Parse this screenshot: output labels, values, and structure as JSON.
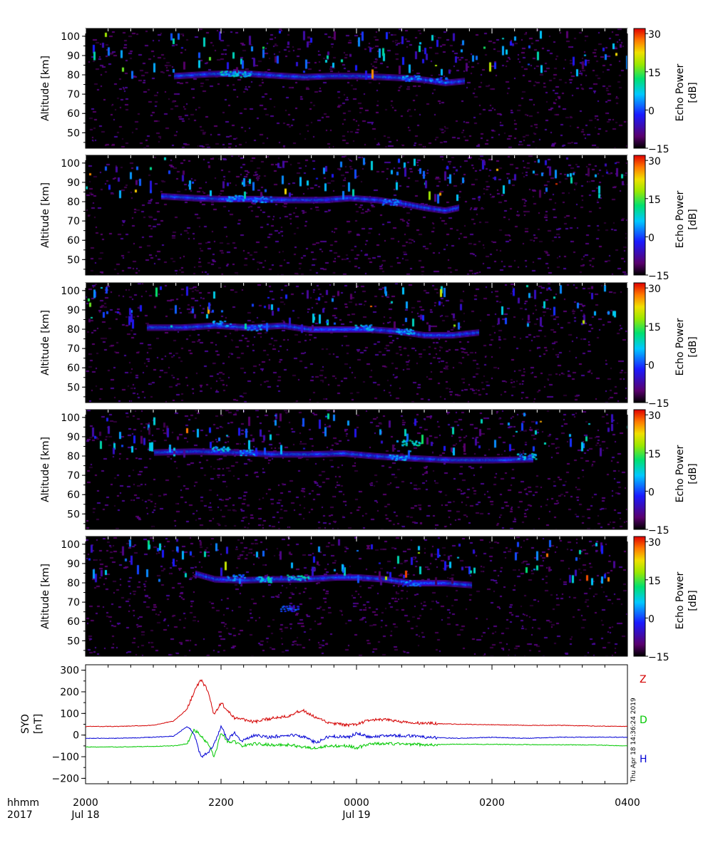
{
  "chart_data": [
    {
      "type": "heatmap",
      "panel": 1,
      "ylabel": "Altitude [km]",
      "yticks": [
        50,
        60,
        70,
        80,
        90,
        100
      ],
      "ylim": [
        42,
        104
      ],
      "xlim_hours": [
        20,
        28
      ],
      "colorbar": {
        "label_line1": "Echo Power",
        "label_line2": "[dB]",
        "ticks": [
          "30",
          "15",
          "0",
          "−15"
        ],
        "range": [
          -15,
          32
        ]
      },
      "layer": [
        [
          21.3,
          79.5
        ],
        [
          21.8,
          80.5
        ],
        [
          22.3,
          81
        ],
        [
          22.7,
          80
        ],
        [
          23.2,
          79
        ],
        [
          23.6,
          79.5
        ],
        [
          24.0,
          79.5
        ],
        [
          24.4,
          79
        ],
        [
          24.7,
          78.5
        ],
        [
          25.0,
          77.5
        ],
        [
          25.3,
          76
        ],
        [
          25.6,
          77
        ]
      ],
      "bright_spots": [
        [
          22.1,
          81,
          12
        ],
        [
          22.3,
          80.5,
          10
        ],
        [
          24.8,
          78.5,
          8
        ],
        [
          25.2,
          77.5,
          6
        ]
      ]
    },
    {
      "type": "heatmap",
      "panel": 2,
      "ylabel": "Altitude [km]",
      "yticks": [
        50,
        60,
        70,
        80,
        90,
        100
      ],
      "ylim": [
        42,
        104
      ],
      "xlim_hours": [
        20,
        28
      ],
      "colorbar": {
        "label_line1": "Echo Power",
        "label_line2": "[dB]",
        "ticks": [
          "30",
          "15",
          "0",
          "−15"
        ],
        "range": [
          -15,
          32
        ]
      },
      "layer": [
        [
          21.1,
          83
        ],
        [
          21.6,
          82
        ],
        [
          22.0,
          81.5
        ],
        [
          22.5,
          81.5
        ],
        [
          23.0,
          81
        ],
        [
          23.5,
          81
        ],
        [
          23.9,
          82
        ],
        [
          24.3,
          81
        ],
        [
          24.7,
          79
        ],
        [
          25.0,
          77
        ],
        [
          25.3,
          75.5
        ],
        [
          25.5,
          77
        ]
      ],
      "bright_spots": [
        [
          22.2,
          82,
          8
        ],
        [
          22.6,
          81.5,
          6
        ],
        [
          24.5,
          80,
          6
        ]
      ]
    },
    {
      "type": "heatmap",
      "panel": 3,
      "ylabel": "Altitude [km]",
      "yticks": [
        50,
        60,
        70,
        80,
        90,
        100
      ],
      "ylim": [
        42,
        104
      ],
      "xlim_hours": [
        20,
        28
      ],
      "colorbar": {
        "label_line1": "Echo Power",
        "label_line2": "[dB]",
        "ticks": [
          "30",
          "15",
          "0",
          "−15"
        ],
        "range": [
          -15,
          32
        ]
      },
      "layer": [
        [
          20.9,
          81
        ],
        [
          21.4,
          81
        ],
        [
          21.9,
          82
        ],
        [
          22.4,
          81
        ],
        [
          22.9,
          82
        ],
        [
          23.3,
          80
        ],
        [
          23.8,
          80
        ],
        [
          24.2,
          80
        ],
        [
          24.6,
          79
        ],
        [
          25.0,
          77
        ],
        [
          25.4,
          77
        ],
        [
          25.8,
          78.5
        ]
      ],
      "bright_spots": [
        [
          22.0,
          83,
          8
        ],
        [
          22.5,
          81,
          6
        ],
        [
          24.1,
          81,
          10
        ],
        [
          24.7,
          79,
          8
        ]
      ]
    },
    {
      "type": "heatmap",
      "panel": 4,
      "ylabel": "Altitude [km]",
      "yticks": [
        50,
        60,
        70,
        80,
        90,
        100
      ],
      "ylim": [
        42,
        104
      ],
      "xlim_hours": [
        20,
        28
      ],
      "colorbar": {
        "label_line1": "Echo Power",
        "label_line2": "[dB]",
        "ticks": [
          "30",
          "15",
          "0",
          "−15"
        ],
        "range": [
          -15,
          32
        ]
      },
      "layer": [
        [
          21.0,
          82
        ],
        [
          21.6,
          82.5
        ],
        [
          22.2,
          82
        ],
        [
          22.8,
          81
        ],
        [
          23.3,
          81
        ],
        [
          23.8,
          81.5
        ],
        [
          24.3,
          80
        ],
        [
          24.8,
          79
        ],
        [
          25.4,
          78
        ],
        [
          26.0,
          78
        ],
        [
          26.6,
          78.5
        ]
      ],
      "bright_spots": [
        [
          22.0,
          84,
          10
        ],
        [
          22.4,
          82,
          8
        ],
        [
          24.6,
          79.5,
          8
        ],
        [
          26.5,
          80,
          10
        ],
        [
          24.8,
          87,
          12
        ]
      ]
    },
    {
      "type": "heatmap",
      "panel": 5,
      "ylabel": "Altitude [km]",
      "yticks": [
        50,
        60,
        70,
        80,
        90,
        100
      ],
      "ylim": [
        42,
        104
      ],
      "xlim_hours": [
        20,
        28
      ],
      "colorbar": {
        "label_line1": "Echo Power",
        "label_line2": "[dB]",
        "ticks": [
          "30",
          "15",
          "0",
          "−15"
        ],
        "range": [
          -15,
          32
        ]
      },
      "layer": [
        [
          21.6,
          85
        ],
        [
          21.9,
          82
        ],
        [
          22.3,
          81.5
        ],
        [
          22.8,
          82
        ],
        [
          23.2,
          82
        ],
        [
          23.7,
          83
        ],
        [
          24.0,
          83
        ],
        [
          24.4,
          82
        ],
        [
          24.8,
          80
        ],
        [
          25.3,
          80
        ],
        [
          25.7,
          79
        ]
      ],
      "bright_spots": [
        [
          22.2,
          83,
          8
        ],
        [
          22.6,
          82,
          10
        ],
        [
          23.1,
          83,
          12
        ],
        [
          24.8,
          80,
          6
        ],
        [
          23.0,
          67,
          4
        ]
      ]
    },
    {
      "type": "line",
      "panel": 6,
      "ylabel_line1": "SYO",
      "ylabel_line2": "[nT]",
      "yticks": [
        "300",
        "200",
        "100",
        "0",
        "−100",
        "−200"
      ],
      "ylim": [
        -225,
        325
      ],
      "xlim_hours": [
        20,
        28
      ],
      "x_hours": [
        20.0,
        20.5,
        21.0,
        21.3,
        21.5,
        21.6,
        21.7,
        21.8,
        21.9,
        22.0,
        22.1,
        22.2,
        22.3,
        22.5,
        22.7,
        23.0,
        23.2,
        23.4,
        23.6,
        23.9,
        24.0,
        24.2,
        24.5,
        24.8,
        25.0,
        25.5,
        26.0,
        26.5,
        27.0,
        27.5,
        28.0
      ],
      "series": [
        {
          "name": "Z",
          "color": "#d40000",
          "values": [
            40,
            40,
            45,
            65,
            120,
            200,
            255,
            210,
            90,
            150,
            110,
            80,
            75,
            60,
            75,
            90,
            115,
            80,
            55,
            45,
            50,
            70,
            70,
            55,
            55,
            50,
            48,
            45,
            45,
            42,
            40
          ]
        },
        {
          "name": "D",
          "color": "#00c800",
          "values": [
            -55,
            -55,
            -52,
            -50,
            -40,
            25,
            0,
            -40,
            -100,
            10,
            -30,
            -30,
            -50,
            -40,
            -45,
            -45,
            -55,
            -60,
            -50,
            -50,
            -60,
            -40,
            -40,
            -42,
            -45,
            -42,
            -43,
            -44,
            -45,
            -46,
            -50
          ]
        },
        {
          "name": "H",
          "color": "#0000d4",
          "values": [
            -15,
            -15,
            -10,
            -5,
            40,
            10,
            -100,
            -85,
            -40,
            40,
            -20,
            10,
            -30,
            0,
            -10,
            0,
            -5,
            -35,
            -5,
            -10,
            10,
            -10,
            0,
            -5,
            -10,
            -15,
            -10,
            -15,
            -10,
            -10,
            -10
          ]
        }
      ],
      "footnote": "Thu Apr 18 14:36:24 2019"
    }
  ],
  "x_axis": {
    "row1_label": "hhmm",
    "row2_label": "2017",
    "ticks": [
      {
        "hour": 20,
        "time": "2000",
        "date": "Jul 18"
      },
      {
        "hour": 22,
        "time": "2200",
        "date": ""
      },
      {
        "hour": 24,
        "time": "0000",
        "date": "Jul 19"
      },
      {
        "hour": 26,
        "time": "0200",
        "date": ""
      },
      {
        "hour": 28,
        "time": "0400",
        "date": ""
      }
    ]
  }
}
